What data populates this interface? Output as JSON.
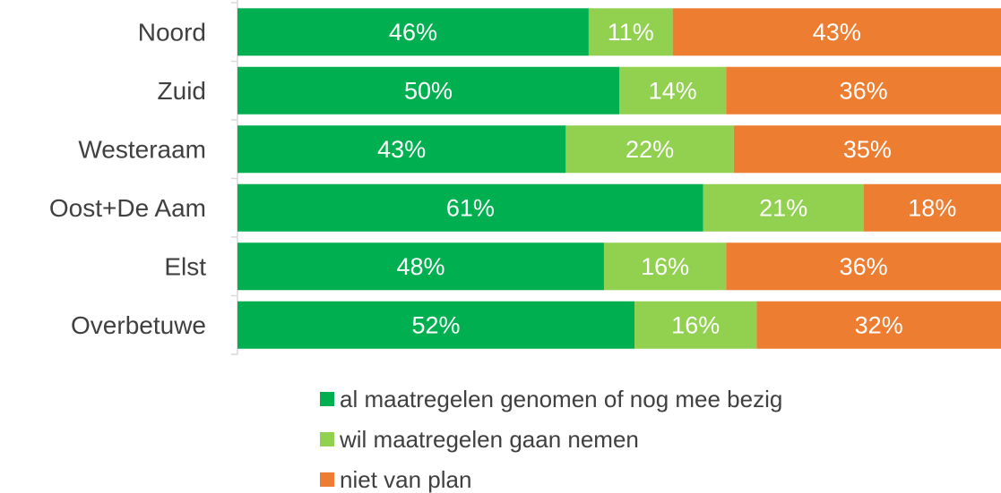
{
  "chart_data": {
    "type": "stacked_bar_horizontal",
    "categories": [
      "Noord",
      "Zuid",
      "Westeraam",
      "Oost+De Aam",
      "Elst",
      "Overbetuwe"
    ],
    "xlim": [
      0,
      100
    ],
    "series": [
      {
        "name": "al maatregelen genomen of nog mee bezig",
        "color": "#00b050",
        "values": [
          46,
          50,
          43,
          61,
          48,
          52
        ],
        "value_labels": [
          "46%",
          "50%",
          "43%",
          "61%",
          "48%",
          "52%"
        ]
      },
      {
        "name": "wil maatregelen gaan nemen",
        "color": "#92d050",
        "values": [
          11,
          14,
          22,
          21,
          16,
          16
        ],
        "value_labels": [
          "11%",
          "14%",
          "22%",
          "21%",
          "16%",
          "16%"
        ]
      },
      {
        "name": "niet van plan",
        "color": "#ed7d31",
        "values": [
          43,
          36,
          35,
          18,
          36,
          32
        ],
        "value_labels": [
          "43%",
          "36%",
          "35%",
          "18%",
          "36%",
          "32%"
        ]
      }
    ],
    "legend": "bottom"
  }
}
